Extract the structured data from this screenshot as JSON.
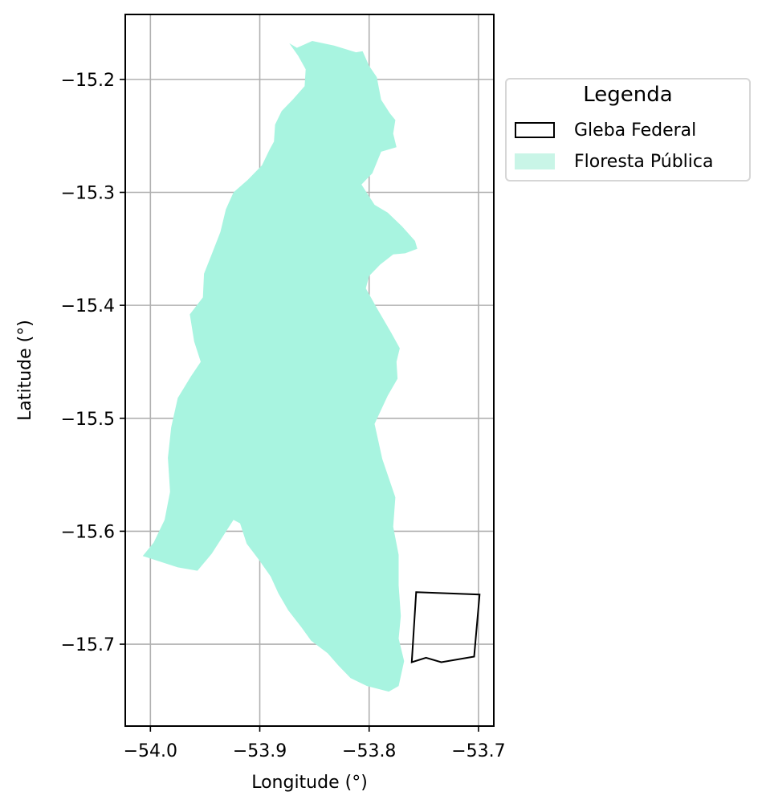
{
  "chart_data": {
    "type": "map",
    "xlabel": "Longitude (°)",
    "ylabel": "Latitude (°)",
    "xlim": [
      -54.023,
      -53.686
    ],
    "ylim": [
      -15.7725,
      -15.1425
    ],
    "grid": true,
    "x_ticks": [
      -54.0,
      -53.9,
      -53.8,
      -53.7
    ],
    "x_tick_labels": [
      "−54.0",
      "−53.9",
      "−53.8",
      "−53.7"
    ],
    "y_ticks": [
      -15.2,
      -15.3,
      -15.4,
      -15.5,
      -15.6,
      -15.7
    ],
    "y_tick_labels": [
      "−15.2",
      "−15.3",
      "−15.4",
      "−15.5",
      "−15.6",
      "−15.7"
    ],
    "legend": {
      "title": "Legenda",
      "placement": "upper-right-outside",
      "entries": [
        {
          "label": "Gleba Federal",
          "fill": "#ffffff",
          "edge": "#000000"
        },
        {
          "label": "Floresta Pública",
          "fill": "#c9f5e7",
          "edge": "none"
        }
      ]
    },
    "layers": [
      {
        "name": "Floresta Pública",
        "fill": "#a8f4e0",
        "coords": [
          [
            -53.873,
            -15.168
          ],
          [
            -53.866,
            -15.172
          ],
          [
            -53.852,
            -15.166
          ],
          [
            -53.832,
            -15.17
          ],
          [
            -53.812,
            -15.176
          ],
          [
            -53.806,
            -15.175
          ],
          [
            -53.8,
            -15.188
          ],
          [
            -53.793,
            -15.198
          ],
          [
            -53.789,
            -15.218
          ],
          [
            -53.781,
            -15.23
          ],
          [
            -53.776,
            -15.236
          ],
          [
            -53.778,
            -15.248
          ],
          [
            -53.775,
            -15.26
          ],
          [
            -53.789,
            -15.264
          ],
          [
            -53.797,
            -15.283
          ],
          [
            -53.807,
            -15.293
          ],
          [
            -53.795,
            -15.311
          ],
          [
            -53.783,
            -15.318
          ],
          [
            -53.77,
            -15.33
          ],
          [
            -53.758,
            -15.343
          ],
          [
            -53.756,
            -15.35
          ],
          [
            -53.767,
            -15.354
          ],
          [
            -53.778,
            -15.355
          ],
          [
            -53.79,
            -15.364
          ],
          [
            -53.8,
            -15.374
          ],
          [
            -53.803,
            -15.385
          ],
          [
            -53.792,
            -15.404
          ],
          [
            -53.78,
            -15.424
          ],
          [
            -53.772,
            -15.438
          ],
          [
            -53.775,
            -15.45
          ],
          [
            -53.774,
            -15.465
          ],
          [
            -53.783,
            -15.48
          ],
          [
            -53.795,
            -15.505
          ],
          [
            -53.788,
            -15.536
          ],
          [
            -53.776,
            -15.57
          ],
          [
            -53.778,
            -15.596
          ],
          [
            -53.773,
            -15.621
          ],
          [
            -53.773,
            -15.648
          ],
          [
            -53.771,
            -15.675
          ],
          [
            -53.773,
            -15.695
          ],
          [
            -53.768,
            -15.715
          ],
          [
            -53.773,
            -15.737
          ],
          [
            -53.782,
            -15.742
          ],
          [
            -53.802,
            -15.737
          ],
          [
            -53.817,
            -15.73
          ],
          [
            -53.828,
            -15.719
          ],
          [
            -53.838,
            -15.708
          ],
          [
            -53.853,
            -15.697
          ],
          [
            -53.862,
            -15.685
          ],
          [
            -53.874,
            -15.67
          ],
          [
            -53.883,
            -15.655
          ],
          [
            -53.89,
            -15.64
          ],
          [
            -53.901,
            -15.625
          ],
          [
            -53.912,
            -15.611
          ],
          [
            -53.918,
            -15.593
          ],
          [
            -53.924,
            -15.59
          ],
          [
            -53.934,
            -15.605
          ],
          [
            -53.944,
            -15.62
          ],
          [
            -53.957,
            -15.635
          ],
          [
            -53.975,
            -15.632
          ],
          [
            -53.994,
            -15.626
          ],
          [
            -54.007,
            -15.622
          ],
          [
            -53.997,
            -15.61
          ],
          [
            -53.987,
            -15.59
          ],
          [
            -53.982,
            -15.565
          ],
          [
            -53.984,
            -15.535
          ],
          [
            -53.981,
            -15.508
          ],
          [
            -53.975,
            -15.482
          ],
          [
            -53.963,
            -15.463
          ],
          [
            -53.954,
            -15.45
          ],
          [
            -53.96,
            -15.432
          ],
          [
            -53.964,
            -15.408
          ],
          [
            -53.952,
            -15.393
          ],
          [
            -53.951,
            -15.372
          ],
          [
            -53.944,
            -15.355
          ],
          [
            -53.936,
            -15.335
          ],
          [
            -53.931,
            -15.315
          ],
          [
            -53.924,
            -15.3
          ],
          [
            -53.911,
            -15.289
          ],
          [
            -53.898,
            -15.276
          ],
          [
            -53.891,
            -15.262
          ],
          [
            -53.887,
            -15.255
          ],
          [
            -53.886,
            -15.24
          ],
          [
            -53.88,
            -15.228
          ],
          [
            -53.87,
            -15.218
          ],
          [
            -53.859,
            -15.206
          ],
          [
            -53.858,
            -15.191
          ],
          [
            -53.865,
            -15.179
          ]
        ]
      },
      {
        "name": "Gleba Federal",
        "fill": "none",
        "edge": "#000000",
        "coords": [
          [
            -53.757,
            -15.654
          ],
          [
            -53.699,
            -15.656
          ],
          [
            -53.704,
            -15.711
          ],
          [
            -53.734,
            -15.716
          ],
          [
            -53.748,
            -15.712
          ],
          [
            -53.761,
            -15.716
          ]
        ]
      }
    ]
  }
}
